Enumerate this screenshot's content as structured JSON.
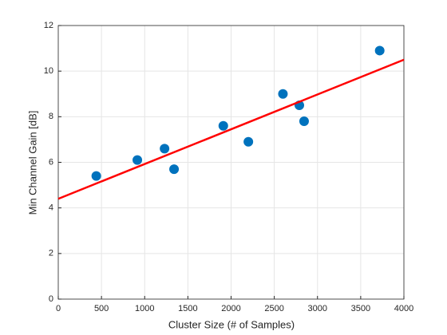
{
  "chart_data": {
    "type": "scatter",
    "x_label": "Cluster Size (# of Samples)",
    "y_label": "Min Channel Gain [dB]",
    "x": [
      440,
      915,
      1230,
      1340,
      1910,
      2200,
      2600,
      2790,
      2845,
      3720
    ],
    "values": [
      5.4,
      6.1,
      6.6,
      5.7,
      7.6,
      6.9,
      9.0,
      8.5,
      7.8,
      10.9
    ],
    "color": "#0072bd",
    "fit": {
      "x": [
        0,
        4000
      ],
      "y": [
        4.4,
        10.5
      ],
      "color": "#ff0000"
    },
    "xlim": [
      0,
      4000
    ],
    "xticks": [
      0,
      500,
      1000,
      1500,
      2000,
      2500,
      3000,
      3500,
      4000
    ],
    "ylim": [
      0,
      12
    ],
    "yticks": [
      0,
      2,
      4,
      6,
      8,
      10,
      12
    ],
    "grid": true
  }
}
